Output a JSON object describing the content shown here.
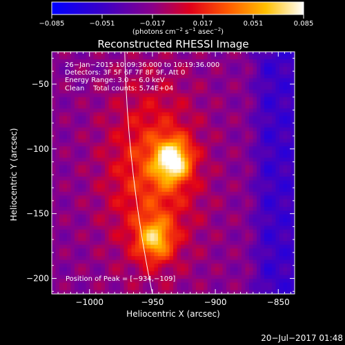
{
  "chart_data": {
    "type": "heatmap",
    "title": "Reconstructed RHESSI Image",
    "colorbar": {
      "ticks": [
        "−0.085",
        "−0.051",
        "−0.017",
        "0.017",
        "0.051",
        "0.085"
      ],
      "range": [
        -0.085,
        0.085
      ],
      "unit_label": "(photons cm",
      "unit_sup1": "−2",
      "unit_mid": " s",
      "unit_sup2": "−1",
      "unit_mid2": " asec",
      "unit_sup3": "−2",
      "unit_end": ")",
      "colormap": "blue-purple-red-orange-yellow-white"
    },
    "info_lines": [
      "26−Jan−2015 10:09:36.000 to 10:19:36.000",
      "Detectors: 3F 5F 6F 7F 8F 9F, Att 0",
      "Energy Range: 3.0 − 6.0 keV",
      "Clean    Total counts: 5.74E+04"
    ],
    "peak_label": "Position of Peak = [−934,−109]",
    "xlabel": "Heliocentric X (arcsec)",
    "ylabel": "Heliocentric Y (arcsec)",
    "xlim": [
      -1030,
      -837
    ],
    "ylim": [
      -212,
      -25
    ],
    "xticks": [
      {
        "value": -1000,
        "label": "−1000"
      },
      {
        "value": -950,
        "label": "−950"
      },
      {
        "value": -900,
        "label": "−900"
      },
      {
        "value": -850,
        "label": "−850"
      }
    ],
    "yticks": [
      {
        "value": -50,
        "label": "−50"
      },
      {
        "value": -100,
        "label": "−100"
      },
      {
        "value": -150,
        "label": "−150"
      },
      {
        "value": -200,
        "label": "−200"
      }
    ],
    "sources": [
      {
        "x": -934,
        "y": -109,
        "peak": 0.085
      },
      {
        "x": -948,
        "y": -170,
        "peak": 0.062
      }
    ],
    "limb": [
      {
        "x": -972,
        "y": -25
      },
      {
        "x": -950,
        "y": -212
      }
    ]
  },
  "footer": {
    "timestamp": "20−Jul−2017 01:48"
  }
}
